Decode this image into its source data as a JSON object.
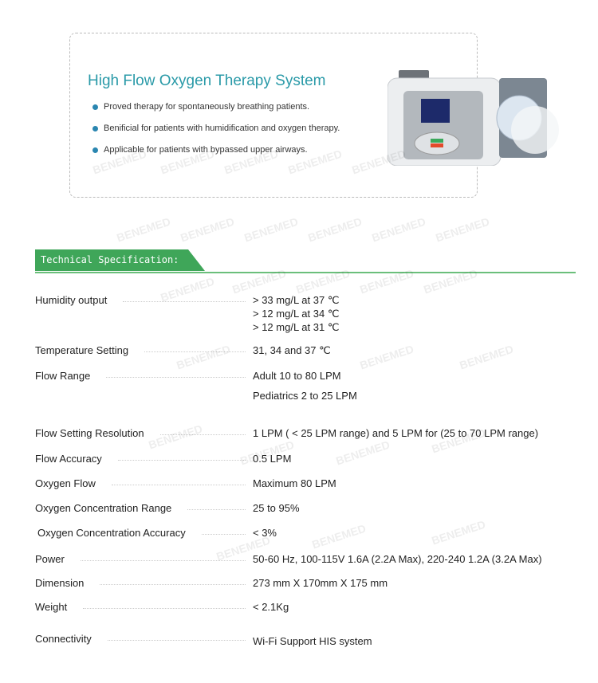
{
  "watermark": "BENEMED",
  "header": {
    "title": "High Flow Oxygen Therapy System",
    "bullets": [
      "Proved therapy for spontaneously breathing patients.",
      "Benificial for patients with humidification and oxygen therapy.",
      "Applicable for patients with bypassed upper airways."
    ]
  },
  "colors": {
    "title": "#2a9aa8",
    "accent_green": "#3fa659",
    "bullet": "#2a86b0"
  },
  "spec": {
    "heading": "Technical Specification:",
    "rows": [
      {
        "label": "Humidity output",
        "values": [
          "> 33 mg/L at 37 ℃",
          "> 12 mg/L at 34 ℃",
          "> 12 mg/L at 31 ℃"
        ]
      },
      {
        "label": "Temperature Setting",
        "values": [
          "31, 34  and 37 ℃"
        ]
      },
      {
        "label": "Flow Range",
        "values": [
          "Adult 10 to 80 LPM",
          "Pediatrics 2 to 25 LPM"
        ]
      },
      {
        "label": "Flow Setting Resolution",
        "values": [
          "1 LPM ( < 25 LPM range) and 5 LPM for  (25 to 70 LPM range)"
        ]
      },
      {
        "label": "Flow Accuracy",
        "values": [
          "0.5 LPM"
        ]
      },
      {
        "label": "Oxygen Flow",
        "values": [
          "Maximum 80 LPM"
        ]
      },
      {
        "label": "Oxygen Concentration Range",
        "values": [
          "25 to 95%"
        ]
      },
      {
        "label": "Oxygen Concentration Accuracy",
        "values": [
          "< 3%"
        ]
      },
      {
        "label": "Power",
        "values": [
          "50-60 Hz, 100-115V 1.6A (2.2A Max), 220-240 1.2A (3.2A Max)"
        ]
      },
      {
        "label": "Dimension",
        "values": [
          "273 mm X 170mm X 175 mm"
        ]
      },
      {
        "label": "Weight",
        "values": [
          "< 2.1Kg"
        ]
      },
      {
        "label": "Connectivity",
        "values": [
          "Wi-Fi  Support HIS system"
        ]
      }
    ]
  }
}
